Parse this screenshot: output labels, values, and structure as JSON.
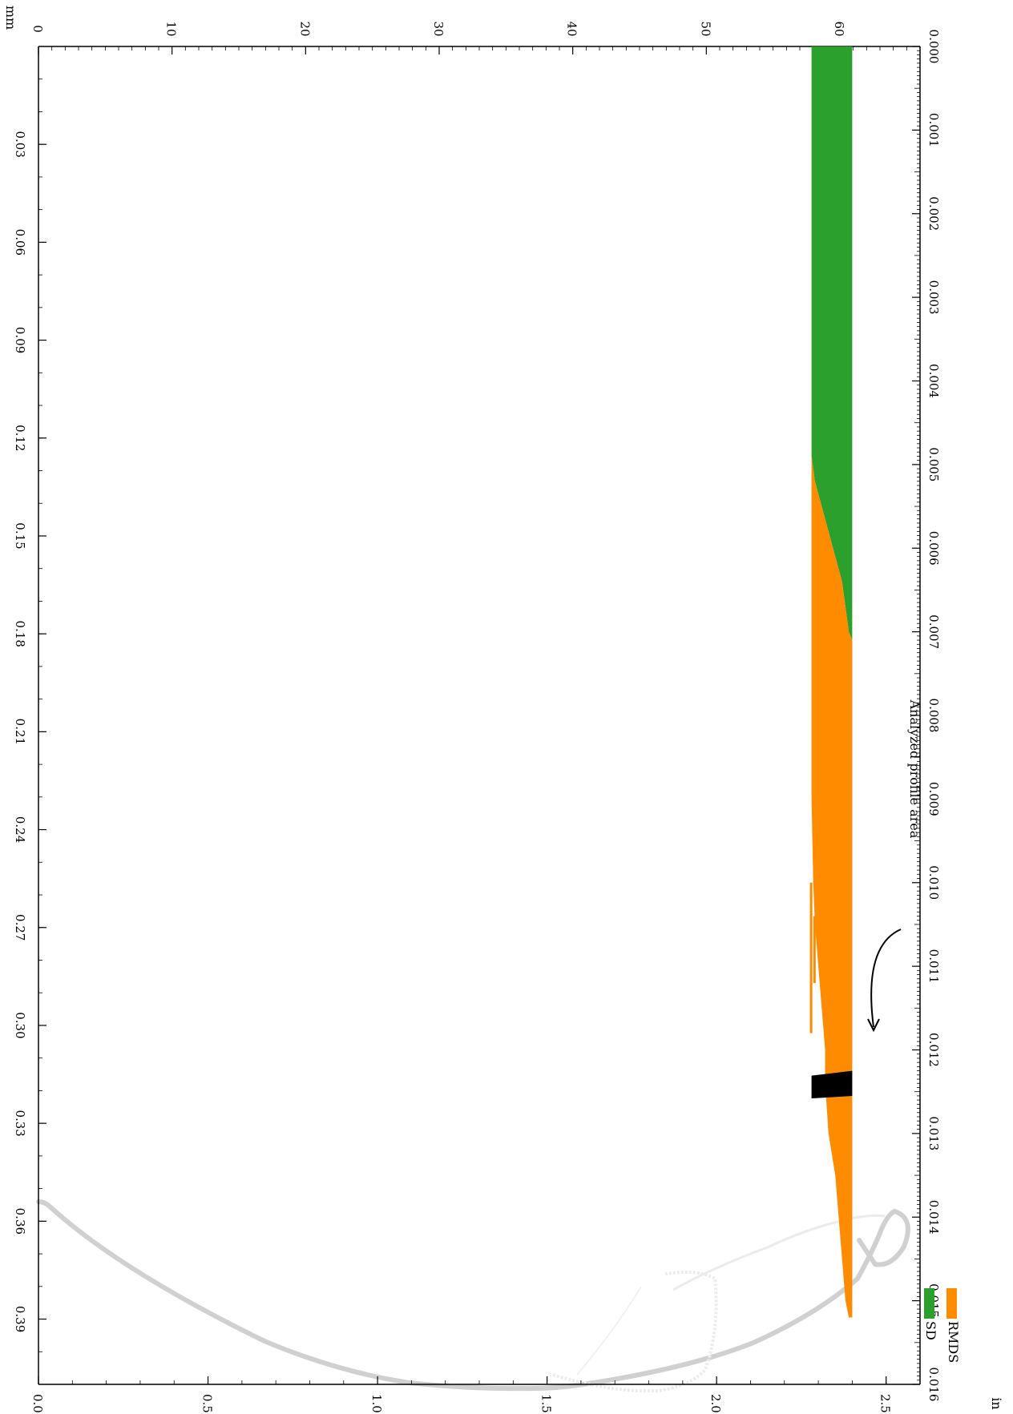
{
  "chart_data": {
    "type": "area",
    "orientation": "rotated-90",
    "units": {
      "left_axis": "mm",
      "bottom_axis": "in"
    },
    "axes": {
      "length_mm": {
        "range": [
          0,
          0.41
        ],
        "ticks": [
          "0.03",
          "0.06",
          "0.09",
          "0.12",
          "0.15",
          "0.18",
          "0.21",
          "0.24",
          "0.27",
          "0.30",
          "0.33",
          "0.36",
          "0.39"
        ]
      },
      "length_in": {
        "range": [
          0.0,
          0.016
        ],
        "ticks": [
          "0.000",
          "0.001",
          "0.002",
          "0.003",
          "0.004",
          "0.005",
          "0.006",
          "0.007",
          "0.008",
          "0.009",
          "0.010",
          "0.011",
          "0.012",
          "0.013",
          "0.014",
          "0.015",
          "0.016"
        ]
      },
      "height_mm": {
        "range": [
          0,
          66
        ],
        "ticks": [
          "0",
          "10",
          "20",
          "30",
          "40",
          "50",
          "60"
        ]
      },
      "height_in": {
        "range": [
          0.0,
          2.6
        ],
        "ticks": [
          "0.0",
          "0.5",
          "1.0",
          "1.5",
          "2.0",
          "2.5"
        ]
      }
    },
    "legend": {
      "placement": "top-right",
      "entries": [
        {
          "name": "RMDS",
          "color": "#ff8c00"
        },
        {
          "name": "SD",
          "color": "#2ca02c"
        }
      ]
    },
    "series": [
      {
        "name": "SD",
        "color": "#2ca02c",
        "band_in": [
          2.28,
          2.4
        ],
        "extent_in": [
          0.0,
          0.0071
        ]
      },
      {
        "name": "RMDS",
        "color": "#ff8c00",
        "boundary_x_in": [
          0.0049,
          0.0052,
          0.0055,
          0.0058,
          0.0061,
          0.0064,
          0.0067,
          0.007,
          0.0071
        ],
        "boundary_y_in": [
          2.28,
          2.29,
          2.31,
          2.33,
          2.35,
          2.37,
          2.38,
          2.39,
          2.4
        ],
        "lower_x_in": [
          0.0071,
          0.008,
          0.009,
          0.01,
          0.0105,
          0.011,
          0.0115,
          0.012,
          0.0124,
          0.013,
          0.0135,
          0.014,
          0.0145,
          0.015,
          0.0152
        ],
        "lower_y_in": [
          2.28,
          2.28,
          2.28,
          2.285,
          2.29,
          2.3,
          2.31,
          2.32,
          2.32,
          2.33,
          2.35,
          2.36,
          2.37,
          2.38,
          2.39
        ],
        "upper_in": 2.4
      },
      {
        "name": "Analyzed profile area",
        "color": "#000000",
        "extent_in": [
          0.01225,
          0.01258
        ],
        "band_in": [
          2.28,
          2.4
        ]
      },
      {
        "name": "profile",
        "color": "#d3d3d3",
        "x_in": [
          0.01292,
          0.0132,
          0.0135,
          0.0138,
          0.0141,
          0.0144,
          0.0147,
          0.0149
        ],
        "y_in": [
          0.0,
          0.25,
          0.55,
          0.85,
          1.1,
          1.3,
          1.5,
          1.7
        ]
      }
    ],
    "annotations": [
      {
        "text": "Analyzed profile area"
      }
    ]
  }
}
